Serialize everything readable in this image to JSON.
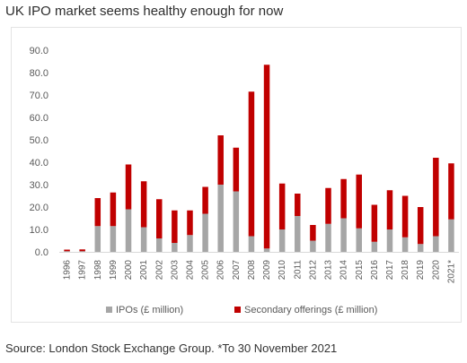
{
  "title": "UK IPO market seems healthy enough for now",
  "source": "Source: London Stock Exchange Group. *To 30 November 2021",
  "colors": {
    "ipo": "#a6a6a6",
    "secondary": "#c00000",
    "axis_text": "#595959",
    "frame": "#e3e3e3"
  },
  "chart_data": {
    "type": "bar",
    "stacked": true,
    "categories": [
      "1996",
      "1997",
      "1998",
      "1999",
      "2000",
      "2001",
      "2002",
      "2003",
      "2004",
      "2005",
      "2006",
      "2007",
      "2008",
      "2009",
      "2010",
      "2011",
      "2012",
      "2013",
      "2014",
      "2015",
      "2016",
      "2017",
      "2018",
      "2019",
      "2020",
      "2021*"
    ],
    "series": [
      {
        "name": "IPOs (£ million)",
        "color": "#a6a6a6",
        "values": [
          0.3,
          0.3,
          11.5,
          11.5,
          19,
          11,
          6,
          4,
          7.5,
          17,
          30,
          27,
          7,
          1.5,
          10,
          16,
          5,
          12.5,
          15,
          10.5,
          4.5,
          10,
          6.5,
          3.5,
          7,
          14.5
        ]
      },
      {
        "name": "Secondary offerings (£ million)",
        "color": "#c00000",
        "values": [
          0.7,
          0.8,
          12.5,
          15,
          20,
          20.5,
          17.5,
          14.5,
          11,
          12,
          22,
          19.5,
          64.5,
          82,
          20.5,
          10,
          7,
          16,
          17.5,
          24,
          16.5,
          17.5,
          18.5,
          16.5,
          35,
          25
        ]
      }
    ],
    "ylim": [
      0,
      90
    ],
    "yticks": [
      "0.0",
      "10.0",
      "20.0",
      "30.0",
      "40.0",
      "50.0",
      "60.0",
      "70.0",
      "80.0",
      "90.0"
    ],
    "grid": false,
    "legend_position": "bottom"
  }
}
